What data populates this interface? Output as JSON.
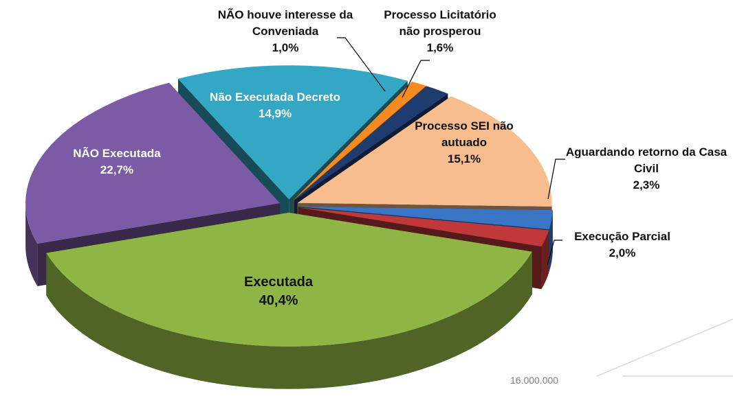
{
  "chart_data": {
    "type": "pie3d",
    "categories": [
      "Executada",
      "NÃO Executada",
      "Não Executada Decreto",
      "NÃO houve interesse da Conveniada",
      "Processo Licitatório não prosperou",
      "Processo SEI não autuado",
      "Aguardando retorno da Casa Civil",
      "Execução Parcial"
    ],
    "values": [
      40.4,
      22.7,
      14.9,
      1.0,
      1.6,
      15.1,
      2.3,
      2.0
    ],
    "value_labels": [
      "40,4%",
      "22,7%",
      "14,9%",
      "1,0%",
      "1,6%",
      "15,1%",
      "2,3%",
      "2,0%"
    ],
    "colors": [
      "#8fb544",
      "#7c5ba6",
      "#33a7c4",
      "#f48a22",
      "#1e3c6e",
      "#f7bd8e",
      "#3a74c4",
      "#c0393a"
    ],
    "annotation": "16.000.000"
  }
}
